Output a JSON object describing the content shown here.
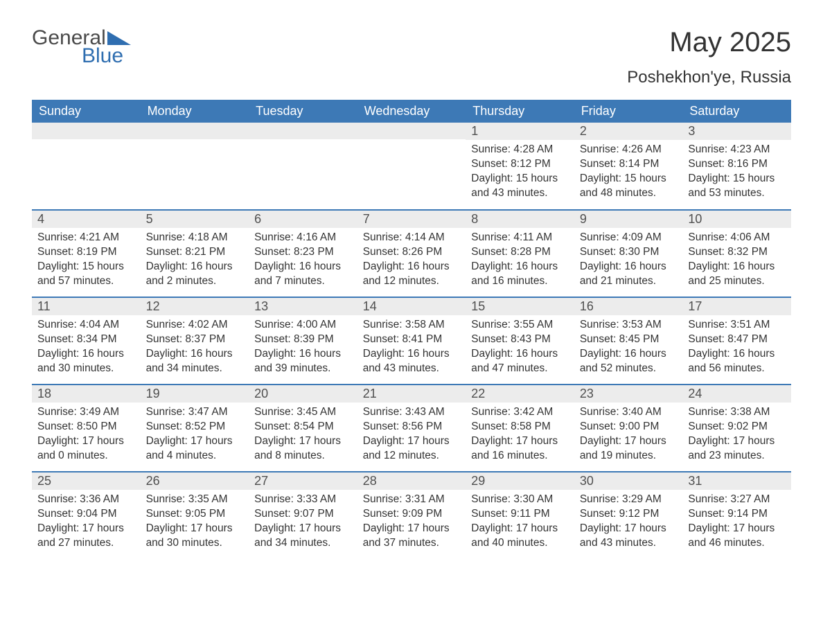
{
  "brand": {
    "word1": "General",
    "word2": "Blue",
    "accent": "#2f6eb0",
    "textcolor": "#4a4a4a"
  },
  "title": "May 2025",
  "subtitle": "Poshekhon'ye, Russia",
  "colors": {
    "header_bg": "#3d79b6",
    "header_fg": "#ffffff",
    "daynum_bg": "#ececec",
    "border": "#3d79b6"
  },
  "dow": [
    "Sunday",
    "Monday",
    "Tuesday",
    "Wednesday",
    "Thursday",
    "Friday",
    "Saturday"
  ],
  "weeks": [
    [
      null,
      null,
      null,
      null,
      {
        "n": "1",
        "sunrise": "Sunrise: 4:28 AM",
        "sunset": "Sunset: 8:12 PM",
        "dl1": "Daylight: 15 hours",
        "dl2": "and 43 minutes."
      },
      {
        "n": "2",
        "sunrise": "Sunrise: 4:26 AM",
        "sunset": "Sunset: 8:14 PM",
        "dl1": "Daylight: 15 hours",
        "dl2": "and 48 minutes."
      },
      {
        "n": "3",
        "sunrise": "Sunrise: 4:23 AM",
        "sunset": "Sunset: 8:16 PM",
        "dl1": "Daylight: 15 hours",
        "dl2": "and 53 minutes."
      }
    ],
    [
      {
        "n": "4",
        "sunrise": "Sunrise: 4:21 AM",
        "sunset": "Sunset: 8:19 PM",
        "dl1": "Daylight: 15 hours",
        "dl2": "and 57 minutes."
      },
      {
        "n": "5",
        "sunrise": "Sunrise: 4:18 AM",
        "sunset": "Sunset: 8:21 PM",
        "dl1": "Daylight: 16 hours",
        "dl2": "and 2 minutes."
      },
      {
        "n": "6",
        "sunrise": "Sunrise: 4:16 AM",
        "sunset": "Sunset: 8:23 PM",
        "dl1": "Daylight: 16 hours",
        "dl2": "and 7 minutes."
      },
      {
        "n": "7",
        "sunrise": "Sunrise: 4:14 AM",
        "sunset": "Sunset: 8:26 PM",
        "dl1": "Daylight: 16 hours",
        "dl2": "and 12 minutes."
      },
      {
        "n": "8",
        "sunrise": "Sunrise: 4:11 AM",
        "sunset": "Sunset: 8:28 PM",
        "dl1": "Daylight: 16 hours",
        "dl2": "and 16 minutes."
      },
      {
        "n": "9",
        "sunrise": "Sunrise: 4:09 AM",
        "sunset": "Sunset: 8:30 PM",
        "dl1": "Daylight: 16 hours",
        "dl2": "and 21 minutes."
      },
      {
        "n": "10",
        "sunrise": "Sunrise: 4:06 AM",
        "sunset": "Sunset: 8:32 PM",
        "dl1": "Daylight: 16 hours",
        "dl2": "and 25 minutes."
      }
    ],
    [
      {
        "n": "11",
        "sunrise": "Sunrise: 4:04 AM",
        "sunset": "Sunset: 8:34 PM",
        "dl1": "Daylight: 16 hours",
        "dl2": "and 30 minutes."
      },
      {
        "n": "12",
        "sunrise": "Sunrise: 4:02 AM",
        "sunset": "Sunset: 8:37 PM",
        "dl1": "Daylight: 16 hours",
        "dl2": "and 34 minutes."
      },
      {
        "n": "13",
        "sunrise": "Sunrise: 4:00 AM",
        "sunset": "Sunset: 8:39 PM",
        "dl1": "Daylight: 16 hours",
        "dl2": "and 39 minutes."
      },
      {
        "n": "14",
        "sunrise": "Sunrise: 3:58 AM",
        "sunset": "Sunset: 8:41 PM",
        "dl1": "Daylight: 16 hours",
        "dl2": "and 43 minutes."
      },
      {
        "n": "15",
        "sunrise": "Sunrise: 3:55 AM",
        "sunset": "Sunset: 8:43 PM",
        "dl1": "Daylight: 16 hours",
        "dl2": "and 47 minutes."
      },
      {
        "n": "16",
        "sunrise": "Sunrise: 3:53 AM",
        "sunset": "Sunset: 8:45 PM",
        "dl1": "Daylight: 16 hours",
        "dl2": "and 52 minutes."
      },
      {
        "n": "17",
        "sunrise": "Sunrise: 3:51 AM",
        "sunset": "Sunset: 8:47 PM",
        "dl1": "Daylight: 16 hours",
        "dl2": "and 56 minutes."
      }
    ],
    [
      {
        "n": "18",
        "sunrise": "Sunrise: 3:49 AM",
        "sunset": "Sunset: 8:50 PM",
        "dl1": "Daylight: 17 hours",
        "dl2": "and 0 minutes."
      },
      {
        "n": "19",
        "sunrise": "Sunrise: 3:47 AM",
        "sunset": "Sunset: 8:52 PM",
        "dl1": "Daylight: 17 hours",
        "dl2": "and 4 minutes."
      },
      {
        "n": "20",
        "sunrise": "Sunrise: 3:45 AM",
        "sunset": "Sunset: 8:54 PM",
        "dl1": "Daylight: 17 hours",
        "dl2": "and 8 minutes."
      },
      {
        "n": "21",
        "sunrise": "Sunrise: 3:43 AM",
        "sunset": "Sunset: 8:56 PM",
        "dl1": "Daylight: 17 hours",
        "dl2": "and 12 minutes."
      },
      {
        "n": "22",
        "sunrise": "Sunrise: 3:42 AM",
        "sunset": "Sunset: 8:58 PM",
        "dl1": "Daylight: 17 hours",
        "dl2": "and 16 minutes."
      },
      {
        "n": "23",
        "sunrise": "Sunrise: 3:40 AM",
        "sunset": "Sunset: 9:00 PM",
        "dl1": "Daylight: 17 hours",
        "dl2": "and 19 minutes."
      },
      {
        "n": "24",
        "sunrise": "Sunrise: 3:38 AM",
        "sunset": "Sunset: 9:02 PM",
        "dl1": "Daylight: 17 hours",
        "dl2": "and 23 minutes."
      }
    ],
    [
      {
        "n": "25",
        "sunrise": "Sunrise: 3:36 AM",
        "sunset": "Sunset: 9:04 PM",
        "dl1": "Daylight: 17 hours",
        "dl2": "and 27 minutes."
      },
      {
        "n": "26",
        "sunrise": "Sunrise: 3:35 AM",
        "sunset": "Sunset: 9:05 PM",
        "dl1": "Daylight: 17 hours",
        "dl2": "and 30 minutes."
      },
      {
        "n": "27",
        "sunrise": "Sunrise: 3:33 AM",
        "sunset": "Sunset: 9:07 PM",
        "dl1": "Daylight: 17 hours",
        "dl2": "and 34 minutes."
      },
      {
        "n": "28",
        "sunrise": "Sunrise: 3:31 AM",
        "sunset": "Sunset: 9:09 PM",
        "dl1": "Daylight: 17 hours",
        "dl2": "and 37 minutes."
      },
      {
        "n": "29",
        "sunrise": "Sunrise: 3:30 AM",
        "sunset": "Sunset: 9:11 PM",
        "dl1": "Daylight: 17 hours",
        "dl2": "and 40 minutes."
      },
      {
        "n": "30",
        "sunrise": "Sunrise: 3:29 AM",
        "sunset": "Sunset: 9:12 PM",
        "dl1": "Daylight: 17 hours",
        "dl2": "and 43 minutes."
      },
      {
        "n": "31",
        "sunrise": "Sunrise: 3:27 AM",
        "sunset": "Sunset: 9:14 PM",
        "dl1": "Daylight: 17 hours",
        "dl2": "and 46 minutes."
      }
    ]
  ]
}
